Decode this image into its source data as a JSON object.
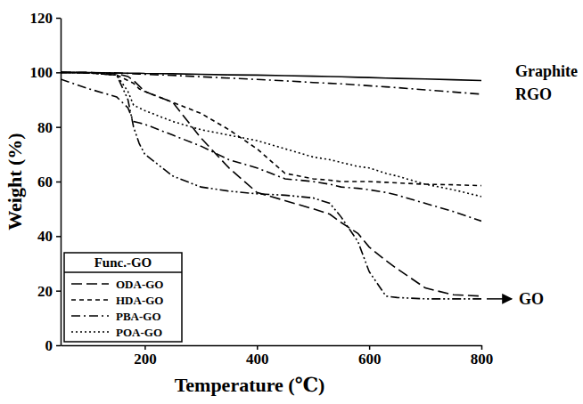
{
  "chart_data": {
    "type": "line",
    "x_label": "Temperature (℃)",
    "y_label": "Weight (%)",
    "x": [
      50,
      100,
      150,
      170,
      180,
      190,
      200,
      250,
      300,
      350,
      400,
      450,
      500,
      530,
      550,
      580,
      600,
      630,
      650,
      700,
      750,
      800
    ],
    "xlim": [
      50,
      800
    ],
    "xticks": [
      200,
      400,
      600,
      800
    ],
    "ylim": [
      0,
      120
    ],
    "yticks": [
      0,
      20,
      40,
      60,
      80,
      100,
      120
    ],
    "legend": "lower left",
    "legend_title": "Func.-GO",
    "annotations": [
      "Graphite",
      "RGO",
      "GO"
    ],
    "series": [
      {
        "name": "Graphite",
        "color": "#000000",
        "line_style": "solid",
        "values": [
          100,
          99.9,
          99.8,
          99.7,
          99.7,
          99.7,
          99.6,
          99.5,
          99.3,
          99.1,
          99,
          98.8,
          98.6,
          98.5,
          98.4,
          98.2,
          98.1,
          97.9,
          97.8,
          97.6,
          97.3,
          97
        ]
      },
      {
        "name": "RGO",
        "color": "#000000",
        "line_style": "dashdot",
        "values": [
          100,
          99.9,
          99.8,
          99.6,
          99.5,
          99.4,
          99.3,
          98.9,
          98.4,
          97.9,
          97.4,
          96.9,
          96.3,
          96,
          95.8,
          95.4,
          95.1,
          94.7,
          94.4,
          93.6,
          92.8,
          92
        ]
      },
      {
        "name": "ODA-GO",
        "color": "#000000",
        "line_style": "longdash",
        "values": [
          100,
          100,
          99.5,
          98.5,
          97,
          95,
          93,
          89,
          76,
          65,
          56,
          53,
          50,
          48,
          45,
          41,
          36,
          31,
          28,
          21,
          18.5,
          18
        ]
      },
      {
        "name": "HDA-GO",
        "color": "#000000",
        "line_style": "dash",
        "values": [
          100,
          99.8,
          99,
          97,
          96,
          94,
          93,
          89,
          85,
          79,
          72,
          63,
          61,
          60.5,
          60,
          60,
          60,
          59.7,
          59.5,
          59,
          58.8,
          58.5
        ]
      },
      {
        "name": "PBA-GO",
        "color": "#000000",
        "line_style": "dashdot",
        "values": [
          97.5,
          94,
          91,
          87,
          82,
          81.5,
          81,
          77,
          73,
          68,
          65,
          61,
          60,
          59,
          58,
          57.5,
          57,
          56,
          55,
          52,
          49,
          45.5
        ]
      },
      {
        "name": "POA-GO",
        "color": "#000000",
        "line_style": "dot",
        "values": [
          100,
          99.8,
          99,
          93,
          88,
          87,
          86,
          82,
          79,
          77,
          75,
          72,
          69,
          68,
          67,
          65.5,
          65,
          63,
          62,
          59,
          57,
          54.5
        ]
      },
      {
        "name": "GO",
        "color": "#000000",
        "line_style": "dashdotdot",
        "values": [
          100,
          99.8,
          99,
          90,
          80,
          74,
          70,
          62,
          58,
          56.5,
          55.5,
          55,
          54,
          52,
          47,
          38,
          27,
          18,
          17.5,
          17,
          17,
          17
        ]
      }
    ]
  }
}
